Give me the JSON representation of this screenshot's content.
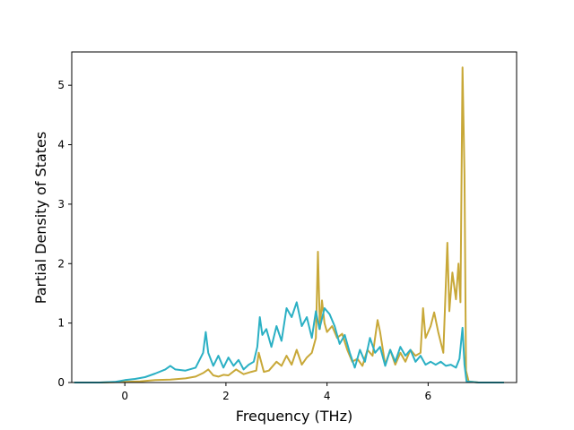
{
  "chart_data": {
    "type": "line",
    "title": "",
    "xlabel": "Frequency (THz)",
    "ylabel": "Partial Density of States",
    "xlim": [
      -1.05,
      7.75
    ],
    "ylim": [
      0,
      5.56
    ],
    "xticks": [
      0,
      2,
      4,
      6
    ],
    "yticks": [
      0,
      1,
      2,
      3,
      4,
      5
    ],
    "grid": false,
    "legend": "none",
    "series": [
      {
        "color": "#c8a838",
        "points": [
          [
            -1.0,
            0.0
          ],
          [
            -0.5,
            0.0
          ],
          [
            0.0,
            0.01
          ],
          [
            0.3,
            0.02
          ],
          [
            0.6,
            0.04
          ],
          [
            0.9,
            0.05
          ],
          [
            1.2,
            0.07
          ],
          [
            1.4,
            0.1
          ],
          [
            1.55,
            0.16
          ],
          [
            1.65,
            0.22
          ],
          [
            1.75,
            0.12
          ],
          [
            1.85,
            0.1
          ],
          [
            1.95,
            0.13
          ],
          [
            2.05,
            0.12
          ],
          [
            2.2,
            0.22
          ],
          [
            2.35,
            0.14
          ],
          [
            2.5,
            0.18
          ],
          [
            2.6,
            0.2
          ],
          [
            2.65,
            0.5
          ],
          [
            2.75,
            0.18
          ],
          [
            2.85,
            0.2
          ],
          [
            3.0,
            0.35
          ],
          [
            3.1,
            0.28
          ],
          [
            3.2,
            0.45
          ],
          [
            3.3,
            0.3
          ],
          [
            3.4,
            0.55
          ],
          [
            3.5,
            0.3
          ],
          [
            3.6,
            0.42
          ],
          [
            3.7,
            0.5
          ],
          [
            3.78,
            0.75
          ],
          [
            3.82,
            2.2
          ],
          [
            3.86,
            0.9
          ],
          [
            3.9,
            1.38
          ],
          [
            3.95,
            1.0
          ],
          [
            4.0,
            0.85
          ],
          [
            4.1,
            0.95
          ],
          [
            4.2,
            0.75
          ],
          [
            4.3,
            0.82
          ],
          [
            4.4,
            0.55
          ],
          [
            4.5,
            0.35
          ],
          [
            4.6,
            0.4
          ],
          [
            4.7,
            0.28
          ],
          [
            4.8,
            0.55
          ],
          [
            4.9,
            0.45
          ],
          [
            5.0,
            1.05
          ],
          [
            5.05,
            0.85
          ],
          [
            5.15,
            0.3
          ],
          [
            5.25,
            0.55
          ],
          [
            5.35,
            0.3
          ],
          [
            5.45,
            0.5
          ],
          [
            5.55,
            0.35
          ],
          [
            5.65,
            0.55
          ],
          [
            5.75,
            0.45
          ],
          [
            5.85,
            0.5
          ],
          [
            5.9,
            1.25
          ],
          [
            5.95,
            0.75
          ],
          [
            6.0,
            0.85
          ],
          [
            6.05,
            0.95
          ],
          [
            6.12,
            1.18
          ],
          [
            6.2,
            0.85
          ],
          [
            6.3,
            0.5
          ],
          [
            6.38,
            2.35
          ],
          [
            6.42,
            1.2
          ],
          [
            6.48,
            1.85
          ],
          [
            6.55,
            1.4
          ],
          [
            6.6,
            2.0
          ],
          [
            6.64,
            1.35
          ],
          [
            6.68,
            5.3
          ],
          [
            6.72,
            3.5
          ],
          [
            6.75,
            0.2
          ],
          [
            6.8,
            0.02
          ],
          [
            7.0,
            0.0
          ],
          [
            7.5,
            0.0
          ]
        ]
      },
      {
        "color": "#2bb0c4",
        "points": [
          [
            -1.0,
            0.0
          ],
          [
            -0.5,
            0.0
          ],
          [
            -0.2,
            0.01
          ],
          [
            0.0,
            0.04
          ],
          [
            0.2,
            0.06
          ],
          [
            0.4,
            0.09
          ],
          [
            0.6,
            0.15
          ],
          [
            0.8,
            0.22
          ],
          [
            0.9,
            0.28
          ],
          [
            1.0,
            0.22
          ],
          [
            1.2,
            0.2
          ],
          [
            1.4,
            0.25
          ],
          [
            1.55,
            0.5
          ],
          [
            1.6,
            0.85
          ],
          [
            1.65,
            0.5
          ],
          [
            1.75,
            0.28
          ],
          [
            1.85,
            0.45
          ],
          [
            1.95,
            0.25
          ],
          [
            2.05,
            0.42
          ],
          [
            2.15,
            0.28
          ],
          [
            2.25,
            0.38
          ],
          [
            2.35,
            0.22
          ],
          [
            2.45,
            0.3
          ],
          [
            2.55,
            0.35
          ],
          [
            2.62,
            0.6
          ],
          [
            2.67,
            1.1
          ],
          [
            2.72,
            0.8
          ],
          [
            2.8,
            0.9
          ],
          [
            2.9,
            0.6
          ],
          [
            3.0,
            0.95
          ],
          [
            3.1,
            0.7
          ],
          [
            3.2,
            1.25
          ],
          [
            3.3,
            1.1
          ],
          [
            3.4,
            1.35
          ],
          [
            3.5,
            0.95
          ],
          [
            3.6,
            1.1
          ],
          [
            3.7,
            0.75
          ],
          [
            3.78,
            1.2
          ],
          [
            3.85,
            0.9
          ],
          [
            3.95,
            1.25
          ],
          [
            4.05,
            1.15
          ],
          [
            4.15,
            0.95
          ],
          [
            4.25,
            0.65
          ],
          [
            4.35,
            0.8
          ],
          [
            4.45,
            0.5
          ],
          [
            4.55,
            0.25
          ],
          [
            4.65,
            0.55
          ],
          [
            4.75,
            0.35
          ],
          [
            4.85,
            0.75
          ],
          [
            4.95,
            0.5
          ],
          [
            5.05,
            0.6
          ],
          [
            5.15,
            0.28
          ],
          [
            5.25,
            0.55
          ],
          [
            5.35,
            0.35
          ],
          [
            5.45,
            0.6
          ],
          [
            5.55,
            0.45
          ],
          [
            5.65,
            0.55
          ],
          [
            5.75,
            0.35
          ],
          [
            5.85,
            0.45
          ],
          [
            5.95,
            0.3
          ],
          [
            6.05,
            0.35
          ],
          [
            6.15,
            0.3
          ],
          [
            6.25,
            0.35
          ],
          [
            6.35,
            0.28
          ],
          [
            6.45,
            0.3
          ],
          [
            6.55,
            0.25
          ],
          [
            6.62,
            0.4
          ],
          [
            6.68,
            0.92
          ],
          [
            6.72,
            0.3
          ],
          [
            6.76,
            0.02
          ],
          [
            7.0,
            0.0
          ],
          [
            7.5,
            0.0
          ]
        ]
      }
    ]
  }
}
